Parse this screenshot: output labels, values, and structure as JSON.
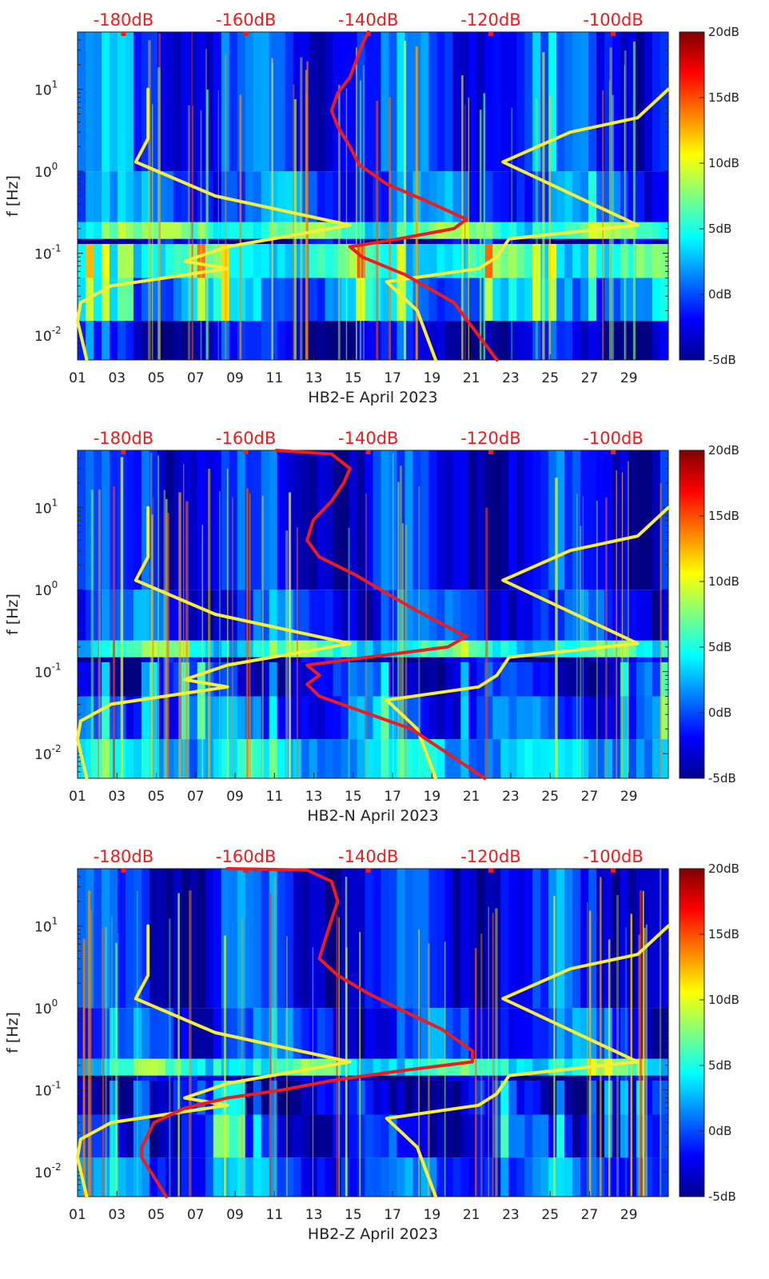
{
  "chart_data": [
    {
      "type": "heatmap",
      "title": "HB2-E",
      "xlabel": "HB2-E April 2023",
      "ylabel": "f [Hz]",
      "x_ticks": [
        "01",
        "03",
        "05",
        "07",
        "09",
        "11",
        "13",
        "15",
        "17",
        "19",
        "21",
        "23",
        "25",
        "27",
        "29"
      ],
      "x_range_days": [
        1,
        31
      ],
      "y_range_hz": [
        0.005,
        50
      ],
      "y_scale": "log",
      "y_ticks": [
        {
          "exp": "-2"
        },
        {
          "exp": "-1"
        },
        {
          "exp": "0"
        },
        {
          "exp": "1"
        }
      ],
      "y_tick_base": "10",
      "top_axis_labels": [
        "-180dB",
        "-160dB",
        "-140dB",
        "-120dB",
        "-100dB"
      ],
      "top_axis_range_db": [
        -187.5,
        -91
      ],
      "colorbar": {
        "labels": [
          "20dB",
          "15dB",
          "10dB",
          "5dB",
          "0dB",
          "-5dB"
        ],
        "range_db": [
          -5,
          20
        ]
      },
      "bands": [
        {
          "fmin": 0.005,
          "fmax": 0.015,
          "level": -3
        },
        {
          "fmin": 0.015,
          "fmax": 0.05,
          "level": 2
        },
        {
          "fmin": 0.05,
          "fmax": 0.13,
          "level": 5
        },
        {
          "fmin": 0.13,
          "fmax": 0.15,
          "level": -4
        },
        {
          "fmin": 0.15,
          "fmax": 0.24,
          "level": 6
        },
        {
          "fmin": 0.24,
          "fmax": 1.0,
          "level": 0
        },
        {
          "fmin": 1.0,
          "fmax": 50,
          "level": -1
        }
      ],
      "noise_model_low": [
        [
          -176,
          10
        ],
        [
          -176,
          2.5
        ],
        [
          -178,
          1.3
        ],
        [
          -165,
          0.5
        ],
        [
          -143,
          0.22
        ],
        [
          -163,
          0.12
        ],
        [
          -170,
          0.08
        ],
        [
          -163,
          0.065
        ],
        [
          -182,
          0.04
        ],
        [
          -187,
          0.025
        ],
        [
          -187.5,
          0.015
        ],
        [
          -186,
          0.005
        ]
      ],
      "noise_model_high": [
        [
          -91,
          10
        ],
        [
          -96,
          4.5
        ],
        [
          -107,
          3
        ],
        [
          -118,
          1.3
        ],
        [
          -96,
          0.22
        ],
        [
          -117,
          0.15
        ],
        [
          -119,
          0.09
        ],
        [
          -122,
          0.065
        ],
        [
          -137,
          0.045
        ],
        [
          -132,
          0.02
        ],
        [
          -129,
          0.005
        ]
      ],
      "site_noise_curve": [
        [
          -140,
          50
        ],
        [
          -141,
          35
        ],
        [
          -142,
          22
        ],
        [
          -143,
          14
        ],
        [
          -145,
          9
        ],
        [
          -146,
          5.5
        ],
        [
          -145,
          3.5
        ],
        [
          -143,
          2.0
        ],
        [
          -141.5,
          1.2
        ],
        [
          -137,
          0.7
        ],
        [
          -131,
          0.45
        ],
        [
          -127,
          0.33
        ],
        [
          -124,
          0.26
        ],
        [
          -126,
          0.2
        ],
        [
          -135,
          0.15
        ],
        [
          -143,
          0.12
        ],
        [
          -141,
          0.09
        ],
        [
          -134,
          0.055
        ],
        [
          -126,
          0.025
        ],
        [
          -119,
          0.005
        ]
      ]
    },
    {
      "type": "heatmap",
      "title": "HB2-N",
      "xlabel": "HB2-N April 2023",
      "ylabel": "f [Hz]",
      "x_ticks": [
        "01",
        "03",
        "05",
        "07",
        "09",
        "11",
        "13",
        "15",
        "17",
        "19",
        "21",
        "23",
        "25",
        "27",
        "29"
      ],
      "x_range_days": [
        1,
        31
      ],
      "y_range_hz": [
        0.005,
        50
      ],
      "y_scale": "log",
      "y_ticks": [
        {
          "exp": "-2"
        },
        {
          "exp": "-1"
        },
        {
          "exp": "0"
        },
        {
          "exp": "1"
        }
      ],
      "y_tick_base": "10",
      "top_axis_labels": [
        "-180dB",
        "-160dB",
        "-140dB",
        "-120dB",
        "-100dB"
      ],
      "top_axis_range_db": [
        -187.5,
        -91
      ],
      "colorbar": {
        "labels": [
          "20dB",
          "15dB",
          "10dB",
          "5dB",
          "0dB",
          "-5dB"
        ],
        "range_db": [
          -5,
          20
        ]
      },
      "bands": [
        {
          "fmin": 0.005,
          "fmax": 0.015,
          "level": 3
        },
        {
          "fmin": 0.015,
          "fmax": 0.05,
          "level": 0
        },
        {
          "fmin": 0.05,
          "fmax": 0.13,
          "level": -2
        },
        {
          "fmin": 0.13,
          "fmax": 0.15,
          "level": -4
        },
        {
          "fmin": 0.15,
          "fmax": 0.24,
          "level": 5
        },
        {
          "fmin": 0.24,
          "fmax": 1.0,
          "level": -1
        },
        {
          "fmin": 1.0,
          "fmax": 50,
          "level": -2
        }
      ],
      "noise_model_low": [
        [
          -176,
          10
        ],
        [
          -176,
          2.5
        ],
        [
          -178,
          1.3
        ],
        [
          -165,
          0.5
        ],
        [
          -143,
          0.22
        ],
        [
          -163,
          0.12
        ],
        [
          -170,
          0.08
        ],
        [
          -163,
          0.065
        ],
        [
          -182,
          0.04
        ],
        [
          -187,
          0.025
        ],
        [
          -187.5,
          0.015
        ],
        [
          -186,
          0.005
        ]
      ],
      "noise_model_high": [
        [
          -91,
          10
        ],
        [
          -96,
          4.5
        ],
        [
          -107,
          3
        ],
        [
          -118,
          1.3
        ],
        [
          -96,
          0.22
        ],
        [
          -117,
          0.15
        ],
        [
          -119,
          0.09
        ],
        [
          -122,
          0.065
        ],
        [
          -137,
          0.045
        ],
        [
          -132,
          0.02
        ],
        [
          -129,
          0.005
        ]
      ],
      "site_noise_curve": [
        [
          -155,
          50
        ],
        [
          -146,
          45
        ],
        [
          -143,
          30
        ],
        [
          -144,
          20
        ],
        [
          -146,
          12
        ],
        [
          -149,
          7
        ],
        [
          -150,
          4
        ],
        [
          -148,
          2.5
        ],
        [
          -142,
          1.5
        ],
        [
          -137,
          0.9
        ],
        [
          -132,
          0.55
        ],
        [
          -127,
          0.35
        ],
        [
          -124,
          0.27
        ],
        [
          -127,
          0.2
        ],
        [
          -137,
          0.16
        ],
        [
          -150,
          0.12
        ],
        [
          -148,
          0.09
        ],
        [
          -150,
          0.07
        ],
        [
          -148,
          0.05
        ],
        [
          -133,
          0.02
        ],
        [
          -121,
          0.005
        ]
      ]
    },
    {
      "type": "heatmap",
      "title": "HB2-Z",
      "xlabel": "HB2-Z April 2023",
      "ylabel": "f [Hz]",
      "x_ticks": [
        "01",
        "03",
        "05",
        "07",
        "09",
        "11",
        "13",
        "15",
        "17",
        "19",
        "21",
        "23",
        "25",
        "27",
        "29"
      ],
      "x_range_days": [
        1,
        31
      ],
      "y_range_hz": [
        0.005,
        50
      ],
      "y_scale": "log",
      "y_ticks": [
        {
          "exp": "-2"
        },
        {
          "exp": "-1"
        },
        {
          "exp": "0"
        },
        {
          "exp": "1"
        }
      ],
      "y_tick_base": "10",
      "top_axis_labels": [
        "-180dB",
        "-160dB",
        "-140dB",
        "-120dB",
        "-100dB"
      ],
      "top_axis_range_db": [
        -187.5,
        -91
      ],
      "colorbar": {
        "labels": [
          "20dB",
          "15dB",
          "10dB",
          "5dB",
          "0dB",
          "-5dB"
        ],
        "range_db": [
          -5,
          20
        ]
      },
      "bands": [
        {
          "fmin": 0.005,
          "fmax": 0.015,
          "level": 0
        },
        {
          "fmin": 0.015,
          "fmax": 0.05,
          "level": -2
        },
        {
          "fmin": 0.05,
          "fmax": 0.13,
          "level": -3
        },
        {
          "fmin": 0.13,
          "fmax": 0.15,
          "level": -4
        },
        {
          "fmin": 0.15,
          "fmax": 0.24,
          "level": 5
        },
        {
          "fmin": 0.24,
          "fmax": 1.0,
          "level": -1
        },
        {
          "fmin": 1.0,
          "fmax": 50,
          "level": -2
        }
      ],
      "noise_model_low": [
        [
          -176,
          10
        ],
        [
          -176,
          2.5
        ],
        [
          -178,
          1.3
        ],
        [
          -165,
          0.5
        ],
        [
          -143,
          0.22
        ],
        [
          -163,
          0.12
        ],
        [
          -170,
          0.08
        ],
        [
          -163,
          0.065
        ],
        [
          -182,
          0.04
        ],
        [
          -187,
          0.025
        ],
        [
          -187.5,
          0.015
        ],
        [
          -186,
          0.005
        ]
      ],
      "noise_model_high": [
        [
          -91,
          10
        ],
        [
          -96,
          4.5
        ],
        [
          -107,
          3
        ],
        [
          -118,
          1.3
        ],
        [
          -96,
          0.22
        ],
        [
          -117,
          0.15
        ],
        [
          -119,
          0.09
        ],
        [
          -122,
          0.065
        ],
        [
          -137,
          0.045
        ],
        [
          -132,
          0.02
        ],
        [
          -129,
          0.005
        ]
      ],
      "site_noise_curve": [
        [
          -163,
          50
        ],
        [
          -150,
          48
        ],
        [
          -146,
          35
        ],
        [
          -145,
          20
        ],
        [
          -146,
          12
        ],
        [
          -147,
          7
        ],
        [
          -148,
          4
        ],
        [
          -145,
          2.5
        ],
        [
          -140,
          1.5
        ],
        [
          -134,
          0.9
        ],
        [
          -128,
          0.55
        ],
        [
          -123,
          0.3
        ],
        [
          -123,
          0.22
        ],
        [
          -135,
          0.17
        ],
        [
          -146,
          0.13
        ],
        [
          -154,
          0.1
        ],
        [
          -163,
          0.08
        ],
        [
          -170,
          0.06
        ],
        [
          -175,
          0.04
        ],
        [
          -177,
          0.02
        ],
        [
          -177,
          0.015
        ],
        [
          -173,
          0.005
        ]
      ]
    }
  ]
}
